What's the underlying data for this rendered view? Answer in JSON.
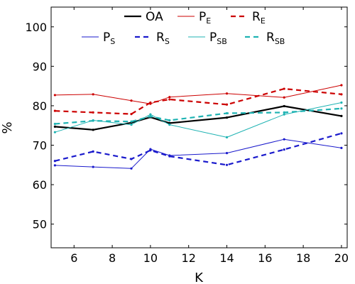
{
  "chart_data": {
    "type": "line",
    "title": "",
    "xlabel": "K",
    "ylabel": "%",
    "x": [
      5,
      7,
      9,
      10,
      11,
      14,
      17,
      20
    ],
    "xlim": [
      4.8,
      20.3
    ],
    "ylim": [
      44,
      105
    ],
    "xticks": [
      "6",
      "8",
      "10",
      "12",
      "14",
      "16",
      "18",
      "20"
    ],
    "yticks": [
      "50",
      "60",
      "70",
      "80",
      "90",
      "100"
    ],
    "grid": false,
    "legend_position": "top",
    "series": [
      {
        "name": "OA",
        "name_main": "OA",
        "name_sub": "",
        "color": "#000000",
        "style": "solid-thick",
        "values": [
          74.7,
          73.9,
          75.7,
          77.1,
          75.6,
          77.0,
          79.9,
          77.4
        ]
      },
      {
        "name": "PE",
        "name_main": "P",
        "name_sub": "E",
        "color": "#cc0000",
        "style": "solid-thin",
        "values": [
          82.7,
          82.9,
          81.3,
          80.5,
          82.2,
          83.1,
          82.1,
          85.2
        ]
      },
      {
        "name": "RE",
        "name_main": "R",
        "name_sub": "E",
        "color": "#cc0000",
        "style": "dashed",
        "values": [
          78.7,
          78.3,
          77.9,
          80.8,
          81.6,
          80.3,
          84.3,
          82.9
        ]
      },
      {
        "name": "PS",
        "name_main": "P",
        "name_sub": "S",
        "color": "#1a1acc",
        "style": "solid-thin",
        "values": [
          64.9,
          64.5,
          64.1,
          69.0,
          67.4,
          68.0,
          71.5,
          69.3
        ]
      },
      {
        "name": "RS",
        "name_main": "R",
        "name_sub": "S",
        "color": "#1a1acc",
        "style": "dashed",
        "values": [
          66.0,
          68.4,
          66.5,
          68.7,
          67.2,
          65.0,
          68.9,
          73.0
        ]
      },
      {
        "name": "PSB",
        "name_main": "P",
        "name_sub": "SB",
        "color": "#1fb3b3",
        "style": "solid-thin",
        "values": [
          73.3,
          76.3,
          75.2,
          77.8,
          75.2,
          72.0,
          77.8,
          80.8
        ]
      },
      {
        "name": "RSB",
        "name_main": "R",
        "name_sub": "SB",
        "color": "#1fb3b3",
        "style": "dashed",
        "values": [
          75.4,
          76.2,
          76.0,
          77.3,
          76.3,
          78.1,
          78.3,
          79.3
        ]
      }
    ]
  }
}
